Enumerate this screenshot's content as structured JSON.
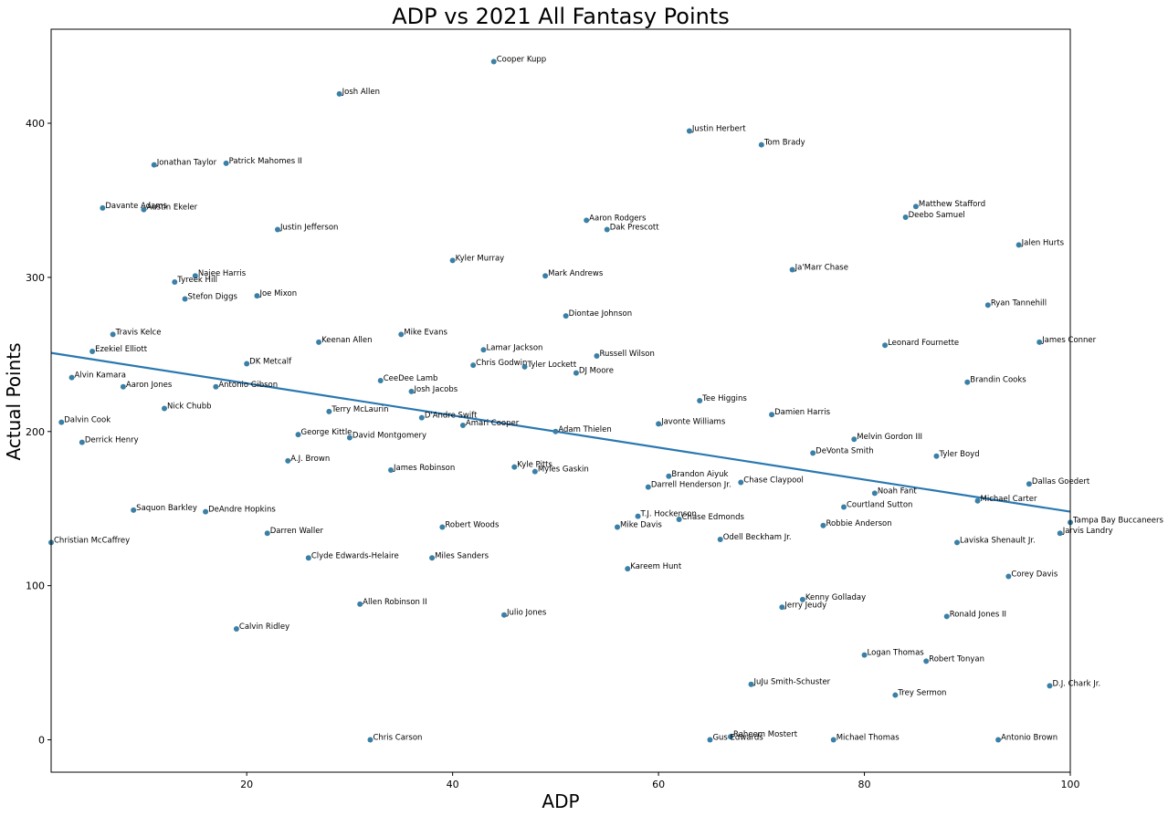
{
  "chart_data": {
    "type": "scatter",
    "title": "ADP vs 2021 All Fantasy Points",
    "xlabel": "ADP",
    "ylabel": "Actual Points",
    "xlim": [
      1,
      100
    ],
    "ylim": [
      -21,
      461
    ],
    "x_ticks": [
      20,
      40,
      60,
      80,
      100
    ],
    "y_ticks": [
      0,
      100,
      200,
      300,
      400
    ],
    "grid": false,
    "point_color": "#3a80a6",
    "line_color": "#2a78b0",
    "trendline": {
      "x": [
        1,
        100
      ],
      "y": [
        251,
        148
      ]
    },
    "points": [
      {
        "label": "Cooper Kupp",
        "x": 44,
        "y": 440
      },
      {
        "label": "Josh Allen",
        "x": 29,
        "y": 419
      },
      {
        "label": "Justin Herbert",
        "x": 63,
        "y": 395
      },
      {
        "label": "Tom Brady",
        "x": 70,
        "y": 386
      },
      {
        "label": "Jonathan Taylor",
        "x": 11,
        "y": 373
      },
      {
        "label": "Patrick Mahomes II",
        "x": 18,
        "y": 374
      },
      {
        "label": "Matthew Stafford",
        "x": 85,
        "y": 346
      },
      {
        "label": "Davante Adams",
        "x": 6,
        "y": 345
      },
      {
        "label": "Austin Ekeler",
        "x": 10,
        "y": 344
      },
      {
        "label": "Deebo Samuel",
        "x": 84,
        "y": 339
      },
      {
        "label": "Aaron Rodgers",
        "x": 53,
        "y": 337
      },
      {
        "label": "Dak Prescott",
        "x": 55,
        "y": 331
      },
      {
        "label": "Justin Jefferson",
        "x": 23,
        "y": 331
      },
      {
        "label": "Jalen Hurts",
        "x": 95,
        "y": 321
      },
      {
        "label": "Kyler Murray",
        "x": 40,
        "y": 311
      },
      {
        "label": "Ja'Marr Chase",
        "x": 73,
        "y": 305
      },
      {
        "label": "Najee Harris",
        "x": 15,
        "y": 301
      },
      {
        "label": "Mark Andrews",
        "x": 49,
        "y": 301
      },
      {
        "label": "Tyreek Hill",
        "x": 13,
        "y": 297
      },
      {
        "label": "Joe Mixon",
        "x": 21,
        "y": 288
      },
      {
        "label": "Stefon Diggs",
        "x": 14,
        "y": 286
      },
      {
        "label": "Ryan Tannehill",
        "x": 92,
        "y": 282
      },
      {
        "label": "Diontae Johnson",
        "x": 51,
        "y": 275
      },
      {
        "label": "Travis Kelce",
        "x": 7,
        "y": 263
      },
      {
        "label": "Mike Evans",
        "x": 35,
        "y": 263
      },
      {
        "label": "Keenan Allen",
        "x": 27,
        "y": 258
      },
      {
        "label": "James Conner",
        "x": 97,
        "y": 258
      },
      {
        "label": "Leonard Fournette",
        "x": 82,
        "y": 256
      },
      {
        "label": "Ezekiel Elliott",
        "x": 5,
        "y": 252
      },
      {
        "label": "Lamar Jackson",
        "x": 43,
        "y": 253
      },
      {
        "label": "Russell Wilson",
        "x": 54,
        "y": 249
      },
      {
        "label": "DK Metcalf",
        "x": 20,
        "y": 244
      },
      {
        "label": "Chris Godwin",
        "x": 42,
        "y": 243
      },
      {
        "label": "Tyler Lockett",
        "x": 47,
        "y": 242
      },
      {
        "label": "DJ Moore",
        "x": 52,
        "y": 238
      },
      {
        "label": "Alvin Kamara",
        "x": 3,
        "y": 235
      },
      {
        "label": "CeeDee Lamb",
        "x": 33,
        "y": 233
      },
      {
        "label": "Brandin Cooks",
        "x": 90,
        "y": 232
      },
      {
        "label": "Aaron Jones",
        "x": 8,
        "y": 229
      },
      {
        "label": "Antonio Gibson",
        "x": 17,
        "y": 229
      },
      {
        "label": "Josh Jacobs",
        "x": 36,
        "y": 226
      },
      {
        "label": "Tee Higgins",
        "x": 64,
        "y": 220
      },
      {
        "label": "Nick Chubb",
        "x": 12,
        "y": 215
      },
      {
        "label": "Terry McLaurin",
        "x": 28,
        "y": 213
      },
      {
        "label": "Damien Harris",
        "x": 71,
        "y": 211
      },
      {
        "label": "D'Andre Swift",
        "x": 37,
        "y": 209
      },
      {
        "label": "Dalvin Cook",
        "x": 2,
        "y": 206
      },
      {
        "label": "Javonte Williams",
        "x": 60,
        "y": 205
      },
      {
        "label": "Amari Cooper",
        "x": 41,
        "y": 204
      },
      {
        "label": "Adam Thielen",
        "x": 50,
        "y": 200
      },
      {
        "label": "George Kittle",
        "x": 25,
        "y": 198
      },
      {
        "label": "David Montgomery",
        "x": 30,
        "y": 196
      },
      {
        "label": "Melvin Gordon III",
        "x": 79,
        "y": 195
      },
      {
        "label": "Derrick Henry",
        "x": 4,
        "y": 193
      },
      {
        "label": "DeVonta Smith",
        "x": 75,
        "y": 186
      },
      {
        "label": "Tyler Boyd",
        "x": 87,
        "y": 184
      },
      {
        "label": "A.J. Brown",
        "x": 24,
        "y": 181
      },
      {
        "label": "Kyle Pitts",
        "x": 46,
        "y": 177
      },
      {
        "label": "Myles Gaskin",
        "x": 48,
        "y": 174
      },
      {
        "label": "James Robinson",
        "x": 34,
        "y": 175
      },
      {
        "label": "Brandon Aiyuk",
        "x": 61,
        "y": 171
      },
      {
        "label": "Chase Claypool",
        "x": 68,
        "y": 167
      },
      {
        "label": "Dallas Goedert",
        "x": 96,
        "y": 166
      },
      {
        "label": "Darrell Henderson Jr.",
        "x": 59,
        "y": 164
      },
      {
        "label": "Noah Fant",
        "x": 81,
        "y": 160
      },
      {
        "label": "Michael Carter",
        "x": 91,
        "y": 155
      },
      {
        "label": "Courtland Sutton",
        "x": 78,
        "y": 151
      },
      {
        "label": "Saquon Barkley",
        "x": 9,
        "y": 149
      },
      {
        "label": "DeAndre Hopkins",
        "x": 16,
        "y": 148
      },
      {
        "label": "T.J. Hockenson",
        "x": 58,
        "y": 145
      },
      {
        "label": "Chase Edmonds",
        "x": 62,
        "y": 143
      },
      {
        "label": "Tampa Bay Buccaneers",
        "x": 100,
        "y": 141
      },
      {
        "label": "Robbie Anderson",
        "x": 76,
        "y": 139
      },
      {
        "label": "Mike Davis",
        "x": 56,
        "y": 138
      },
      {
        "label": "Robert Woods",
        "x": 39,
        "y": 138
      },
      {
        "label": "Darren Waller",
        "x": 22,
        "y": 134
      },
      {
        "label": "Jarvis Landry",
        "x": 99,
        "y": 134
      },
      {
        "label": "Odell Beckham Jr.",
        "x": 66,
        "y": 130
      },
      {
        "label": "Christian McCaffrey",
        "x": 1,
        "y": 128
      },
      {
        "label": "Laviska Shenault Jr.",
        "x": 89,
        "y": 128
      },
      {
        "label": "Clyde Edwards-Helaire",
        "x": 26,
        "y": 118
      },
      {
        "label": "Miles Sanders",
        "x": 38,
        "y": 118
      },
      {
        "label": "Kareem Hunt",
        "x": 57,
        "y": 111
      },
      {
        "label": "Corey Davis",
        "x": 94,
        "y": 106
      },
      {
        "label": "Kenny Golladay",
        "x": 74,
        "y": 91
      },
      {
        "label": "Allen Robinson II",
        "x": 31,
        "y": 88
      },
      {
        "label": "Jerry Jeudy",
        "x": 72,
        "y": 86
      },
      {
        "label": "Julio Jones",
        "x": 45,
        "y": 81
      },
      {
        "label": "Ronald Jones II",
        "x": 88,
        "y": 80
      },
      {
        "label": "Calvin Ridley",
        "x": 19,
        "y": 72
      },
      {
        "label": "Logan Thomas",
        "x": 80,
        "y": 55
      },
      {
        "label": "Robert Tonyan",
        "x": 86,
        "y": 51
      },
      {
        "label": "JuJu Smith-Schuster",
        "x": 69,
        "y": 36
      },
      {
        "label": "D.J. Chark Jr.",
        "x": 98,
        "y": 35
      },
      {
        "label": "Trey Sermon",
        "x": 83,
        "y": 29
      },
      {
        "label": "Raheem Mostert",
        "x": 67,
        "y": 2
      },
      {
        "label": "Chris Carson",
        "x": 32,
        "y": 0
      },
      {
        "label": "Gus Edwards",
        "x": 65,
        "y": 0
      },
      {
        "label": "Michael Thomas",
        "x": 77,
        "y": 0
      },
      {
        "label": "Antonio Brown",
        "x": 93,
        "y": 0
      }
    ]
  }
}
